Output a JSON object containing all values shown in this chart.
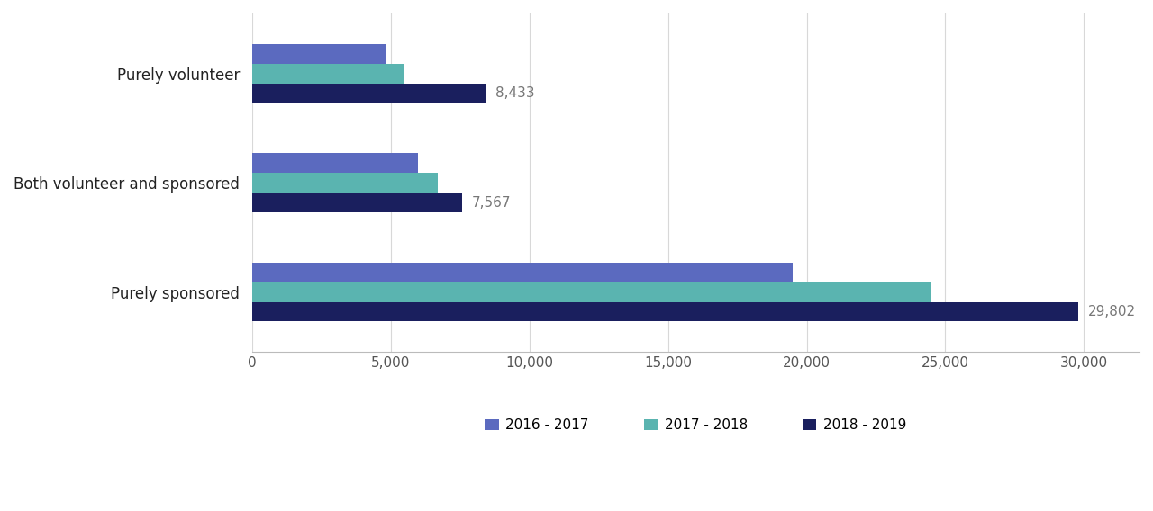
{
  "categories": [
    "Purely sponsored",
    "Both volunteer and sponsored",
    "Purely volunteer"
  ],
  "series": [
    {
      "label": "2016 - 2017",
      "color": "#5b6abf",
      "values": [
        19500,
        6000,
        4800
      ]
    },
    {
      "label": "2017 - 2018",
      "color": "#5ab4b0",
      "values": [
        24500,
        6700,
        5500
      ]
    },
    {
      "label": "2018 - 2019",
      "color": "#1a1f5e",
      "values": [
        29802,
        7567,
        8433
      ]
    }
  ],
  "annotations": [
    {
      "category": "Purely volunteer",
      "series_idx": 2,
      "value": 8433,
      "label": "8,433"
    },
    {
      "category": "Both volunteer and sponsored",
      "series_idx": 2,
      "value": 7567,
      "label": "7,567"
    },
    {
      "category": "Purely sponsored",
      "series_idx": 2,
      "value": 29802,
      "label": "29,802"
    }
  ],
  "xlim": [
    0,
    32000
  ],
  "xticks": [
    0,
    5000,
    10000,
    15000,
    20000,
    25000,
    30000
  ],
  "background_color": "#ffffff",
  "grid_color": "#d8d8d8",
  "bar_height": 0.18,
  "annotation_fontsize": 11,
  "tick_fontsize": 11,
  "legend_fontsize": 11,
  "label_fontsize": 12
}
